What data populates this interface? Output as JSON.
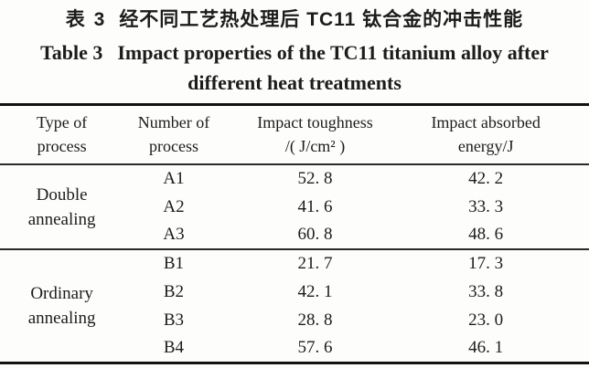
{
  "page": {
    "background": "#fdfdfc",
    "text_color": "#1c1c1c",
    "rule_color": "#121212"
  },
  "title": {
    "zh_label": "表 3",
    "zh_text": "经不同工艺热处理后 TC11 钛合金的冲击性能",
    "en_label": "Table 3",
    "en_line1": "Impact properties of the TC11 titanium alloy after",
    "en_line2": "different heat treatments"
  },
  "table": {
    "headers": [
      {
        "line1": "Type of",
        "line2": "process"
      },
      {
        "line1": "Number of",
        "line2": "process"
      },
      {
        "line1": "Impact toughness",
        "line2": "/( J/cm² )"
      },
      {
        "line1": "Impact absorbed",
        "line2": "energy/J"
      }
    ],
    "sections": [
      {
        "type_line1": "Double",
        "type_line2": "annealing",
        "rows": [
          {
            "number": "A1",
            "toughness": "52. 8",
            "energy": "42. 2"
          },
          {
            "number": "A2",
            "toughness": "41. 6",
            "energy": "33. 3"
          },
          {
            "number": "A3",
            "toughness": "60. 8",
            "energy": "48. 6"
          }
        ]
      },
      {
        "type_line1": "Ordinary",
        "type_line2": "annealing",
        "rows": [
          {
            "number": "B1",
            "toughness": "21. 7",
            "energy": "17. 3"
          },
          {
            "number": "B2",
            "toughness": "42. 1",
            "energy": "33. 8"
          },
          {
            "number": "B3",
            "toughness": "28. 8",
            "energy": "23. 0"
          },
          {
            "number": "B4",
            "toughness": "57. 6",
            "energy": "46. 1"
          }
        ]
      }
    ]
  },
  "chart_data": {
    "type": "table",
    "title": "Table 3 Impact properties of the TC11 titanium alloy after different heat treatments",
    "title_zh": "表 3 经不同工艺热处理后 TC11 钛合金的冲击性能",
    "columns": [
      "Type of process",
      "Number of process",
      "Impact toughness /(J/cm²)",
      "Impact absorbed energy/J"
    ],
    "rows": [
      [
        "Double annealing",
        "A1",
        52.8,
        42.2
      ],
      [
        "Double annealing",
        "A2",
        41.6,
        33.3
      ],
      [
        "Double annealing",
        "A3",
        60.8,
        48.6
      ],
      [
        "Ordinary annealing",
        "B1",
        21.7,
        17.3
      ],
      [
        "Ordinary annealing",
        "B2",
        42.1,
        33.8
      ],
      [
        "Ordinary annealing",
        "B3",
        28.8,
        23.0
      ],
      [
        "Ordinary annealing",
        "B4",
        57.6,
        46.1
      ]
    ]
  }
}
